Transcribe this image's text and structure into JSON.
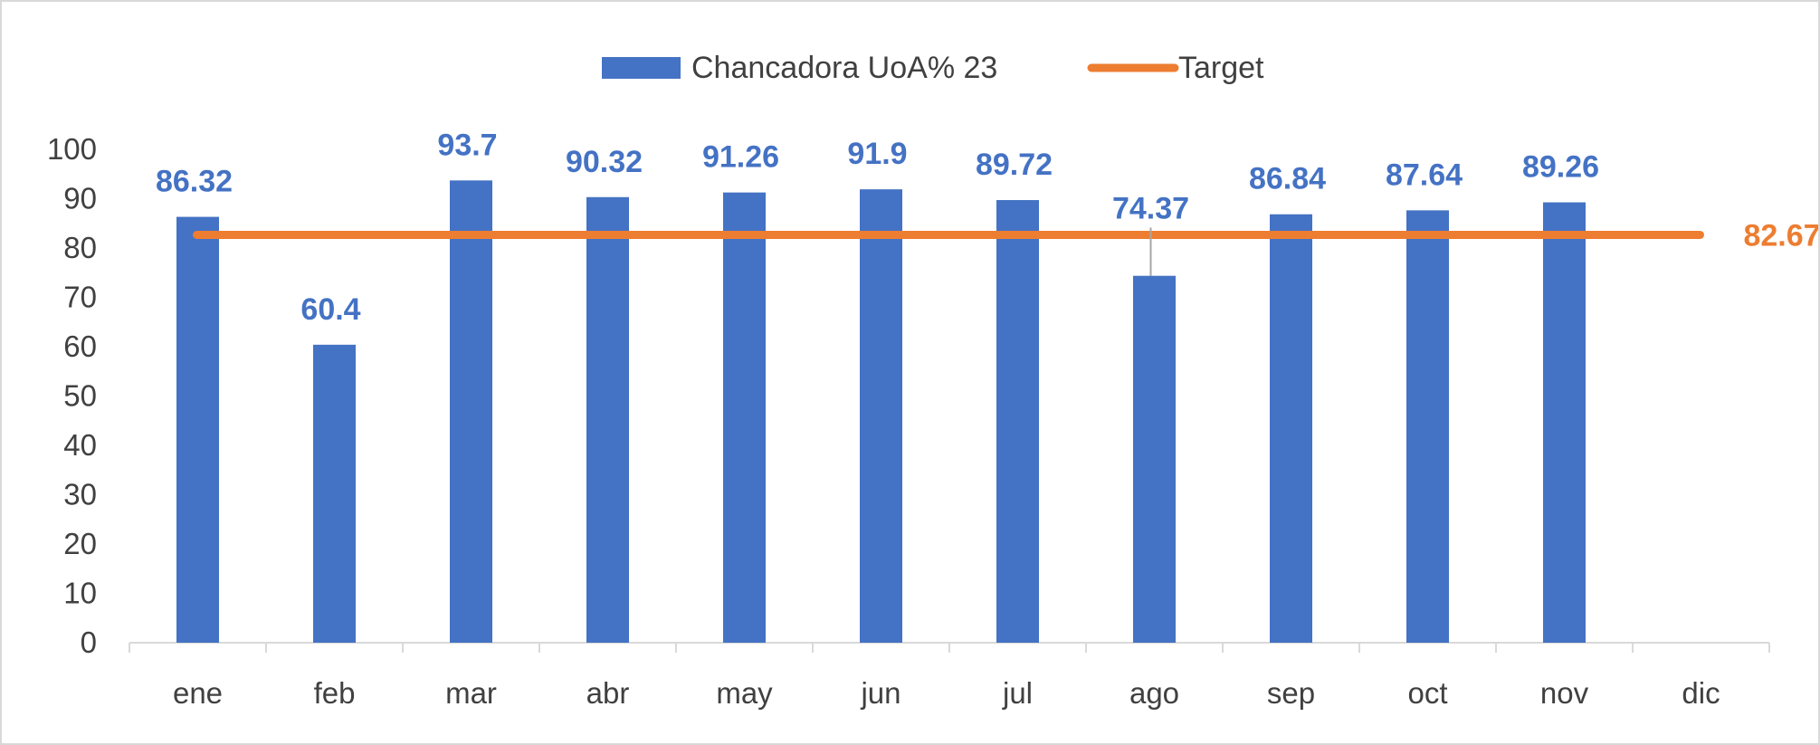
{
  "chart_data": {
    "type": "bar",
    "categories": [
      "ene",
      "feb",
      "mar",
      "abr",
      "may",
      "jun",
      "jul",
      "ago",
      "sep",
      "oct",
      "nov",
      "dic"
    ],
    "series": [
      {
        "name": "Chancadora UoA% 23",
        "kind": "bar",
        "color": "#4472C4",
        "values": [
          86.32,
          60.4,
          93.7,
          90.32,
          91.26,
          91.9,
          89.72,
          74.37,
          86.84,
          87.64,
          89.26,
          null
        ],
        "labels": [
          "86.32",
          "60.4",
          "93.7",
          "90.32",
          "91.26",
          "91.9",
          "89.72",
          "74.37",
          "86.84",
          "87.64",
          "89.26",
          ""
        ]
      },
      {
        "name": "Target",
        "kind": "line",
        "color": "#ED7D31",
        "value": 82.67,
        "label": "82.67"
      }
    ],
    "yticks": [
      "0",
      "10",
      "20",
      "30",
      "40",
      "50",
      "60",
      "70",
      "80",
      "90",
      "100"
    ],
    "ylim": [
      0,
      100
    ],
    "legend_position": "top-center",
    "grid": false
  }
}
